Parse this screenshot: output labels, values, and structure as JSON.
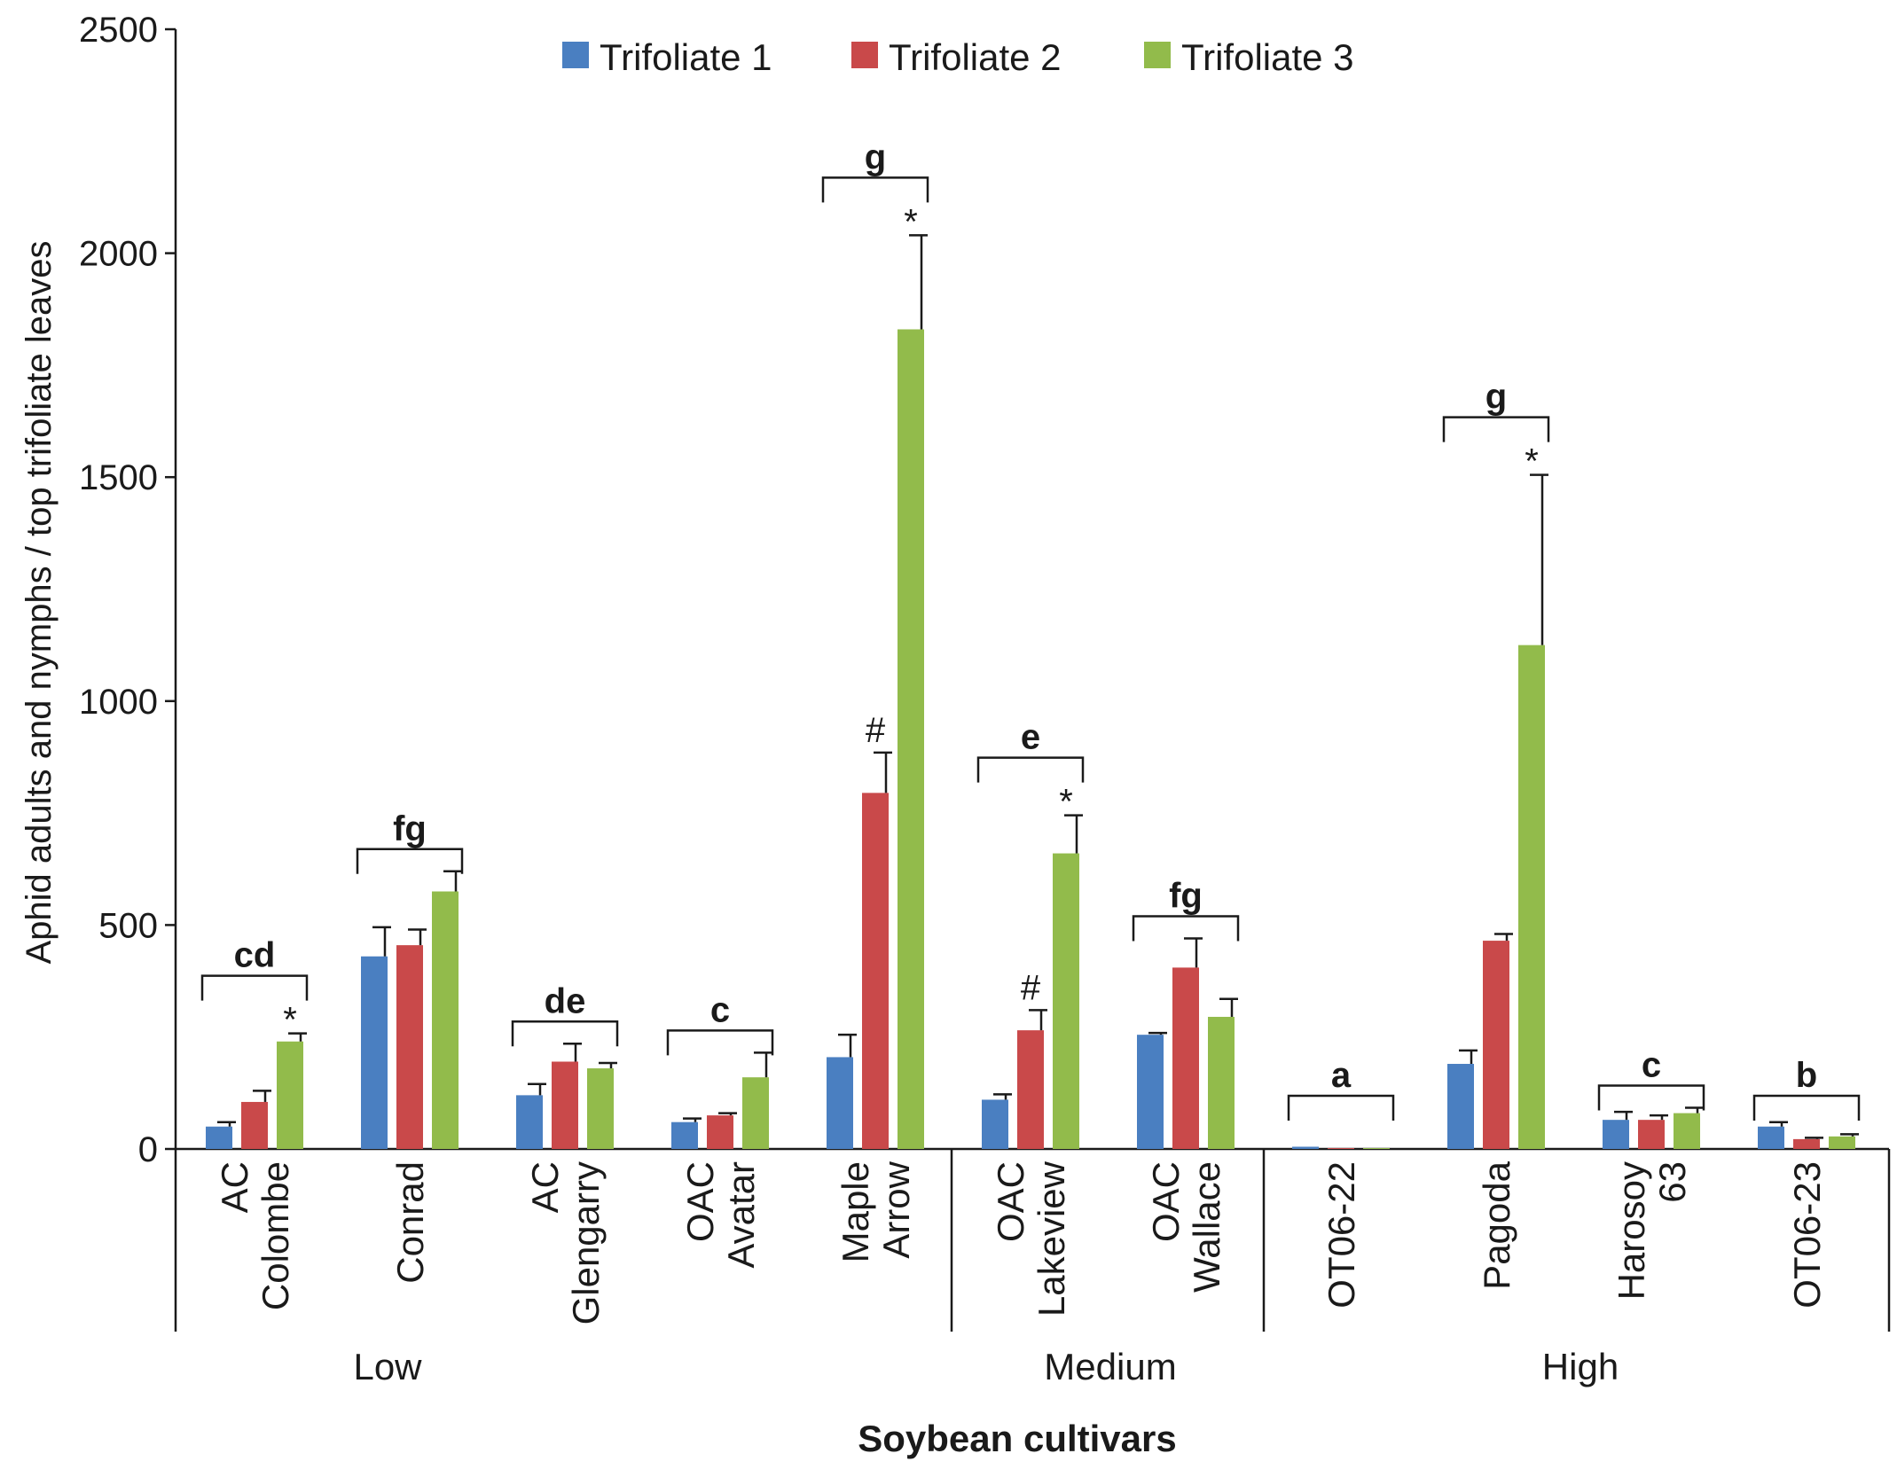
{
  "chart_data": {
    "type": "bar",
    "ylabel": "Aphid adults and nymphs / top trifoliate leaves",
    "xlabel": "Soybean cultivars",
    "ylim": [
      0,
      2500
    ],
    "yticks": [
      0,
      500,
      1000,
      1500,
      2000,
      2500
    ],
    "series": [
      {
        "name": "Trifoliate 1",
        "color": "#4a7fc1",
        "values": [
          50,
          430,
          120,
          60,
          205,
          110,
          255,
          5,
          190,
          65,
          50
        ],
        "errors": [
          10,
          65,
          25,
          8,
          50,
          12,
          4,
          0,
          30,
          18,
          10
        ]
      },
      {
        "name": "Trifoliate 2",
        "color": "#c9494a",
        "values": [
          105,
          455,
          195,
          75,
          795,
          265,
          405,
          0,
          465,
          65,
          22
        ],
        "errors": [
          25,
          35,
          40,
          5,
          90,
          45,
          65,
          0,
          15,
          10,
          3
        ]
      },
      {
        "name": "Trifoliate 3",
        "color": "#92bb4b",
        "values": [
          240,
          575,
          180,
          160,
          1830,
          660,
          295,
          0,
          1125,
          80,
          28
        ],
        "errors": [
          18,
          45,
          12,
          55,
          210,
          85,
          40,
          0,
          380,
          12,
          5
        ]
      }
    ],
    "categories": [
      {
        "lines": [
          "AC",
          "Colombe"
        ],
        "letter": "cd",
        "marks": {
          "t3": "*"
        }
      },
      {
        "lines": [
          "Conrad"
        ],
        "letter": "fg",
        "marks": {}
      },
      {
        "lines": [
          "AC",
          "Glengarry"
        ],
        "letter": "de",
        "marks": {}
      },
      {
        "lines": [
          "OAC",
          "Avatar"
        ],
        "letter": "c",
        "marks": {}
      },
      {
        "lines": [
          "Maple",
          "Arrow"
        ],
        "letter": "g",
        "marks": {
          "t2": "#",
          "t3": "*"
        }
      },
      {
        "lines": [
          "OAC",
          "Lakeview"
        ],
        "letter": "e",
        "marks": {
          "t2": "#",
          "t3": "*"
        }
      },
      {
        "lines": [
          "OAC",
          "Wallace"
        ],
        "letter": "fg",
        "marks": {}
      },
      {
        "lines": [
          "OT06-22"
        ],
        "letter": "a",
        "marks": {}
      },
      {
        "lines": [
          "Pagoda"
        ],
        "letter": "g",
        "marks": {
          "t3": "*"
        }
      },
      {
        "lines": [
          "Harosoy",
          "63"
        ],
        "letter": "c",
        "marks": {}
      },
      {
        "lines": [
          "OT06-23"
        ],
        "letter": "b",
        "marks": {}
      }
    ],
    "groups": [
      {
        "label": "Low",
        "start": 0,
        "end": 4
      },
      {
        "label": "Medium",
        "start": 5,
        "end": 6
      },
      {
        "label": "High",
        "start": 7,
        "end": 10
      }
    ],
    "legend": [
      "Trifoliate 1",
      "Trifoliate 2",
      "Trifoliate 3"
    ]
  }
}
